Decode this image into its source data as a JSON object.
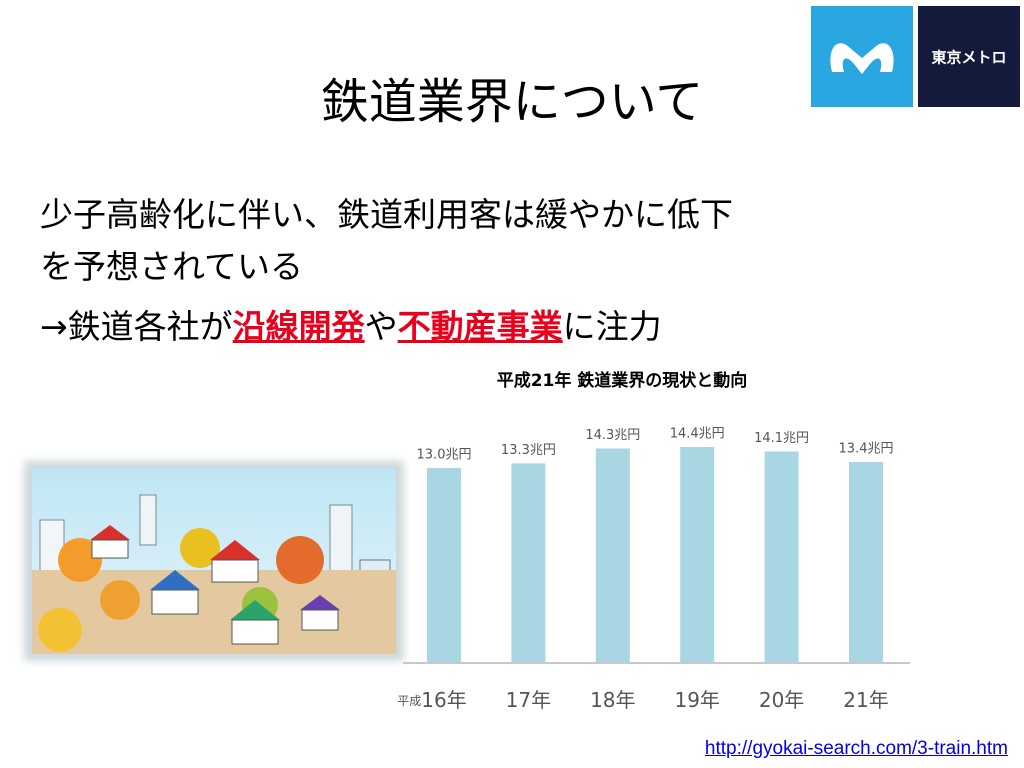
{
  "title": "鉄道業界について",
  "logo_text": "東京メトロ",
  "bullets": [
    "少子高齢化に伴い、鉄道利用客は緩やかに低下",
    "を予想されている"
  ],
  "focus_line": [
    "→鉄道各社が",
    "沿線開発",
    "や",
    "不動産事業",
    "に注力"
  ],
  "link": "http://gyokai-search.com/3-train.htm",
  "chart_data": {
    "type": "bar",
    "title": "平成21年 鉄道業界の現状と動向",
    "x_prefix": "平成",
    "categories": [
      "16年",
      "17年",
      "18年",
      "19年",
      "20年",
      "21年"
    ],
    "values": [
      13.0,
      13.3,
      14.3,
      14.4,
      14.1,
      13.4
    ],
    "value_labels": [
      "13.0兆円",
      "13.3兆円",
      "14.3兆円",
      "14.4兆円",
      "14.1兆円",
      "13.4兆円"
    ],
    "color": "#a8d6e3"
  }
}
